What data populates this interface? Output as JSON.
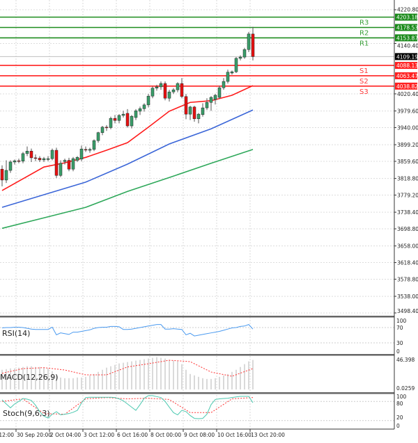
{
  "chart_data": {
    "type": "candlestick",
    "price_axis": {
      "range": [
        3498.4,
        4220.8
      ],
      "ticks": [
        "4220.80",
        "4140.40",
        "4020.40",
        "3979.60",
        "3940.00",
        "3899.20",
        "3859.60",
        "3818.80",
        "3779.20",
        "3738.40",
        "3698.80",
        "3658.00",
        "3618.40",
        "3578.80",
        "3538.00",
        "3498.40"
      ],
      "grid": true
    },
    "time_axis": {
      "labels": [
        "12:00",
        "30 Sep 20:00",
        "2 Oct 04:00",
        "3 Oct 12:00",
        "6 Oct 16:00",
        "8 Oct 00:00",
        "9 Oct 08:00",
        "10 Oct 16:00",
        "13 Oct 20:00"
      ],
      "label_candle_index": [
        -1,
        3,
        11,
        19,
        27,
        35,
        43,
        51,
        59
      ]
    },
    "candles_ohlc": [
      [
        3841,
        3850,
        3800,
        3815
      ],
      [
        3815,
        3862,
        3808,
        3838
      ],
      [
        3838,
        3862,
        3832,
        3858
      ],
      [
        3858,
        3864,
        3852,
        3861
      ],
      [
        3861,
        3866,
        3855,
        3860
      ],
      [
        3860,
        3882,
        3855,
        3878
      ],
      [
        3878,
        3895,
        3872,
        3884
      ],
      [
        3884,
        3890,
        3858,
        3868
      ],
      [
        3868,
        3876,
        3860,
        3867
      ],
      [
        3867,
        3872,
        3858,
        3863
      ],
      [
        3863,
        3870,
        3858,
        3866
      ],
      [
        3864,
        3872,
        3860,
        3866
      ],
      [
        3866,
        3890,
        3862,
        3886
      ],
      [
        3886,
        3892,
        3820,
        3826
      ],
      [
        3826,
        3862,
        3822,
        3855
      ],
      [
        3859,
        3866,
        3852,
        3862
      ],
      [
        3862,
        3868,
        3836,
        3841
      ],
      [
        3841,
        3870,
        3836,
        3866
      ],
      [
        3862,
        3872,
        3858,
        3869
      ],
      [
        3865,
        3897,
        3860,
        3889
      ],
      [
        3888,
        3895,
        3882,
        3887
      ],
      [
        3886,
        3892,
        3880,
        3888
      ],
      [
        3888,
        3912,
        3884,
        3909
      ],
      [
        3909,
        3930,
        3904,
        3928
      ],
      [
        3928,
        3944,
        3922,
        3941
      ],
      [
        3941,
        3946,
        3932,
        3940
      ],
      [
        3940,
        3966,
        3936,
        3962
      ],
      [
        3962,
        3970,
        3950,
        3957
      ],
      [
        3957,
        3972,
        3950,
        3969
      ],
      [
        3969,
        3980,
        3964,
        3972
      ],
      [
        3974,
        3984,
        3940,
        3944
      ],
      [
        3944,
        3970,
        3938,
        3967
      ],
      [
        3964,
        3984,
        3958,
        3980
      ],
      [
        3979,
        3990,
        3970,
        3985
      ],
      [
        3985,
        3998,
        3978,
        3994
      ],
      [
        3994,
        4020,
        3988,
        4015
      ],
      [
        4015,
        4038,
        4010,
        4034
      ],
      [
        4034,
        4042,
        4028,
        4037
      ],
      [
        4037,
        4050,
        4030,
        4045
      ],
      [
        4045,
        4050,
        4005,
        4010
      ],
      [
        4010,
        4030,
        4002,
        4025
      ],
      [
        4025,
        4034,
        4020,
        4030
      ],
      [
        4030,
        4048,
        4024,
        4045
      ],
      [
        4045,
        4058,
        4010,
        4014
      ],
      [
        4014,
        4020,
        3960,
        3972
      ],
      [
        3972,
        3992,
        3958,
        3989
      ],
      [
        3989,
        3992,
        3954,
        3961
      ],
      [
        3961,
        3975,
        3950,
        3972
      ],
      [
        3971,
        3998,
        3966,
        3987
      ],
      [
        3987,
        4010,
        3982,
        4000
      ],
      [
        4000,
        4015,
        3980,
        4012
      ],
      [
        4007,
        4020,
        3995,
        4017
      ],
      [
        4012,
        4040,
        4008,
        4035
      ],
      [
        4035,
        4058,
        4030,
        4050
      ],
      [
        4050,
        4078,
        4045,
        4072
      ],
      [
        4070,
        4076,
        4066,
        4073
      ],
      [
        4073,
        4108,
        4070,
        4105
      ],
      [
        4105,
        4112,
        4100,
        4108
      ],
      [
        4108,
        4130,
        4104,
        4126
      ],
      [
        4126,
        4168,
        4120,
        4163
      ],
      [
        4163,
        4180,
        4100,
        4109.19
      ]
    ],
    "moving_averages": [
      {
        "color": "#ff1a1a",
        "every_n_candles": 5,
        "values": [
          3790,
          3818,
          3846,
          3856,
          3869,
          3886,
          3904,
          3941,
          3979,
          4000,
          4004,
          4017,
          4040
        ]
      },
      {
        "color": "#3b66d8",
        "every_n_candles": 10,
        "values": [
          3750,
          3780,
          3810,
          3853,
          3901,
          3937,
          3982
        ]
      },
      {
        "color": "#2ea85a",
        "every_n_candles": 10,
        "values": [
          3700,
          3725,
          3750,
          3788,
          3821,
          3855,
          3888
        ]
      }
    ],
    "levels": [
      {
        "name": "R3",
        "value": "4203.18",
        "color": "#1e8c1e",
        "tag_color": "#1a8a1a"
      },
      {
        "name": "R2",
        "value": "4178.53",
        "color": "#1e8c1e",
        "tag_color": "#1a8a1a"
      },
      {
        "name": "R1",
        "value": "4153.87",
        "color": "#1e8c1e",
        "tag_color": "#1a8a1a"
      },
      {
        "name": "S1",
        "value": "4088.13",
        "color": "#ff2020",
        "tag_color": "#ff2020"
      },
      {
        "name": "S2",
        "value": "4063.47",
        "color": "#ff2020",
        "tag_color": "#ff2020"
      },
      {
        "name": "S3",
        "value": "4038.82",
        "color": "#ff2020",
        "tag_color": "#ff2020"
      }
    ],
    "current_price": "4109.19",
    "colors": {
      "bull": "#3a9e6a",
      "bear": "#e81010",
      "rsi": "#4a9af0",
      "macd_hist": "#c9c9c9",
      "macd_signal": "#ff3030",
      "stoch_main": "#4cc9b0",
      "stoch_signal": "#ff3030"
    },
    "rsi": {
      "label": "RSI(14)",
      "levels": [
        "100",
        "70",
        "30",
        "0"
      ],
      "values": [
        69,
        70,
        70,
        71,
        71,
        70,
        68,
        66,
        65,
        65,
        65,
        65,
        71,
        51,
        56,
        54,
        52,
        58,
        58,
        60,
        62,
        64,
        68,
        70,
        71,
        71,
        73,
        73,
        72,
        65,
        65,
        66,
        68,
        70,
        72,
        74,
        76,
        78,
        78,
        66,
        66,
        67,
        66,
        65,
        51,
        55,
        48,
        50,
        52,
        54,
        56,
        58,
        60,
        63,
        66,
        69,
        70,
        73,
        74,
        78,
        66
      ]
    },
    "macd": {
      "label": "MACD(12,26,9)",
      "axis_labels": [
        "46.398",
        "0.0259"
      ],
      "range": [
        0,
        46.398
      ],
      "histogram": [
        28,
        29,
        30,
        30,
        31,
        32,
        33,
        33,
        32,
        32,
        31,
        30,
        26,
        20,
        17,
        16,
        16,
        16,
        17,
        17,
        18,
        20,
        22,
        25,
        28,
        31,
        33,
        35,
        37,
        38,
        39,
        40,
        41,
        42,
        43,
        44,
        45,
        46,
        45,
        44,
        42,
        41,
        40,
        36,
        28,
        22,
        20,
        18,
        16,
        15,
        15,
        16,
        18,
        20,
        22,
        25,
        28,
        32,
        36,
        40,
        42
      ],
      "signal_every_n_candles": 5,
      "signal": [
        23,
        29.7,
        31,
        27.7,
        20.8,
        20.8,
        32,
        36.6,
        41.6,
        39.6,
        24.8,
        18.8,
        29.7
      ]
    },
    "stoch": {
      "label": "Stoch(9,6,3)",
      "levels": [
        "100",
        "80",
        "20",
        "0"
      ],
      "main": [
        85,
        72,
        60,
        72,
        80,
        89,
        87,
        83,
        68,
        48,
        34,
        28,
        40,
        48,
        38,
        40,
        42,
        46,
        52,
        75,
        92,
        93,
        93,
        93,
        93,
        93,
        93,
        92,
        88,
        82,
        72,
        62,
        52,
        70,
        90,
        98,
        98,
        95,
        92,
        80,
        62,
        45,
        38,
        52,
        48,
        36,
        27,
        26,
        27,
        40,
        70,
        86,
        88,
        89,
        90,
        92,
        94,
        96,
        96,
        96,
        76
      ],
      "signal_every_n_candles": 5,
      "signal": [
        80,
        88,
        42,
        40,
        88,
        92,
        88,
        90,
        86,
        45,
        45,
        88,
        92
      ]
    }
  }
}
